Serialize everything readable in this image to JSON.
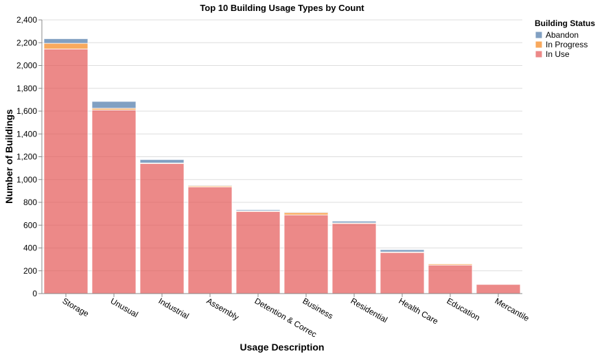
{
  "chart_data": {
    "type": "bar",
    "stacked": true,
    "title": "Top 10 Building Usage Types by Count",
    "xlabel": "Usage Description",
    "ylabel": "Number of Buildings",
    "ylim": [
      0,
      2400
    ],
    "yticks": [
      0,
      200,
      400,
      600,
      800,
      1000,
      1200,
      1400,
      1600,
      1800,
      2000,
      2200,
      2400
    ],
    "grid": true,
    "legend_title": "Building Status",
    "legend_placement": "top-right",
    "categories": [
      "Storage",
      "Unusual",
      "Industrial",
      "Assembly",
      "Detention & Correc",
      "Business",
      "Residential",
      "Health Care",
      "Education",
      "Mercantile"
    ],
    "series": [
      {
        "name": "In Use",
        "color": "#e45756",
        "values": [
          2145,
          1610,
          1140,
          935,
          720,
          690,
          615,
          360,
          250,
          80
        ]
      },
      {
        "name": "In Progress",
        "color": "#f58518",
        "values": [
          50,
          15,
          5,
          10,
          5,
          20,
          5,
          5,
          10,
          0
        ]
      },
      {
        "name": "Abandon",
        "color": "#4c78a8",
        "values": [
          40,
          60,
          30,
          5,
          10,
          5,
          15,
          20,
          0,
          0
        ]
      }
    ],
    "legend_order": [
      "Abandon",
      "In Progress",
      "In Use"
    ]
  }
}
